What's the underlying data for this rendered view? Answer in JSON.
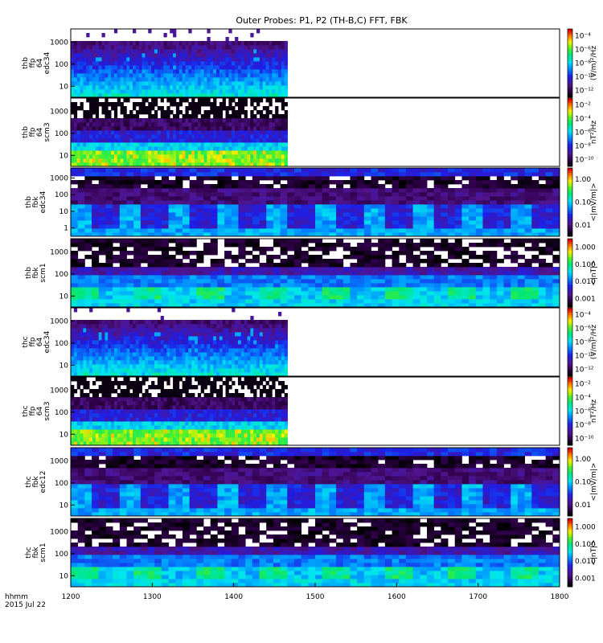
{
  "title": "Outer Probes: P1, P2 (TH-B,C) FFT, FBK",
  "time_axis": {
    "label_line1": "hhmm",
    "label_line2": "2015 Jul 22",
    "ticks": [
      "1200",
      "1300",
      "1400",
      "1500",
      "1600",
      "1700",
      "1800"
    ]
  },
  "chart_data": [
    {
      "type": "heatmap",
      "panel": 1,
      "ylabel": [
        "thb",
        "ffp",
        "64",
        "edc34"
      ],
      "y_ticks": [
        "10",
        "100",
        "1000"
      ],
      "y_log": true,
      "x_range": [
        1200,
        1800
      ],
      "data_end_x": 1466,
      "colorbar": {
        "label": "(V/m)²/Hz",
        "ticks": [
          "10⁻¹²",
          "10⁻¹⁰",
          "10⁻⁸",
          "10⁻⁶",
          "10⁻⁴"
        ]
      }
    },
    {
      "type": "heatmap",
      "panel": 2,
      "ylabel": [
        "thb",
        "ffp",
        "64",
        "scm3"
      ],
      "y_ticks": [
        "10",
        "100",
        "1000"
      ],
      "y_log": true,
      "x_range": [
        1200,
        1800
      ],
      "data_end_x": 1466,
      "colorbar": {
        "label": "nT²/Hz",
        "ticks": [
          "10⁻¹⁰",
          "10⁻⁸",
          "10⁻⁶",
          "10⁻⁴",
          "10⁻²"
        ]
      }
    },
    {
      "type": "heatmap",
      "panel": 3,
      "ylabel": [
        "thb",
        "fbk",
        "edc34"
      ],
      "y_ticks": [
        "1",
        "10",
        "100",
        "1000"
      ],
      "y_log": true,
      "x_range": [
        1200,
        1800
      ],
      "colorbar": {
        "label": "<|mV/m|>",
        "ticks": [
          "0.01",
          "0.10",
          "1.00"
        ]
      }
    },
    {
      "type": "heatmap",
      "panel": 4,
      "ylabel": [
        "thb",
        "fbk",
        "scm1"
      ],
      "y_ticks": [
        "10",
        "100",
        "1000"
      ],
      "y_log": true,
      "x_range": [
        1200,
        1800
      ],
      "colorbar": {
        "label": "<|nT|>",
        "ticks": [
          "0.001",
          "0.010",
          "0.100",
          "1.000"
        ]
      }
    },
    {
      "type": "heatmap",
      "panel": 5,
      "ylabel": [
        "thc",
        "ffp",
        "64",
        "edc34"
      ],
      "y_ticks": [
        "10",
        "100",
        "1000"
      ],
      "y_log": true,
      "x_range": [
        1200,
        1800
      ],
      "data_end_x": 1466,
      "colorbar": {
        "label": "(V/m)²/Hz",
        "ticks": [
          "10⁻¹²",
          "10⁻¹⁰",
          "10⁻⁸",
          "10⁻⁶",
          "10⁻⁴"
        ]
      }
    },
    {
      "type": "heatmap",
      "panel": 6,
      "ylabel": [
        "thc",
        "ffp",
        "64",
        "scm3"
      ],
      "y_ticks": [
        "10",
        "100",
        "1000"
      ],
      "y_log": true,
      "x_range": [
        1200,
        1800
      ],
      "data_end_x": 1466,
      "colorbar": {
        "label": "nT²/Hz",
        "ticks": [
          "10⁻¹⁰",
          "10⁻⁸",
          "10⁻⁶",
          "10⁻⁴",
          "10⁻²"
        ]
      }
    },
    {
      "type": "heatmap",
      "panel": 7,
      "ylabel": [
        "thc",
        "fbk",
        "edc12"
      ],
      "y_ticks": [
        "10",
        "100",
        "1000"
      ],
      "y_log": true,
      "x_range": [
        1200,
        1800
      ],
      "colorbar": {
        "label": "<|mV/m|>",
        "ticks": [
          "0.01",
          "0.10",
          "1.00"
        ]
      }
    },
    {
      "type": "heatmap",
      "panel": 8,
      "ylabel": [
        "thc",
        "fbk",
        "scm1"
      ],
      "y_ticks": [
        "10",
        "100",
        "1000"
      ],
      "y_log": true,
      "x_range": [
        1200,
        1800
      ],
      "colorbar": {
        "label": "<|nT|>",
        "ticks": [
          "0.001",
          "0.010",
          "0.100",
          "1.000"
        ]
      }
    }
  ]
}
